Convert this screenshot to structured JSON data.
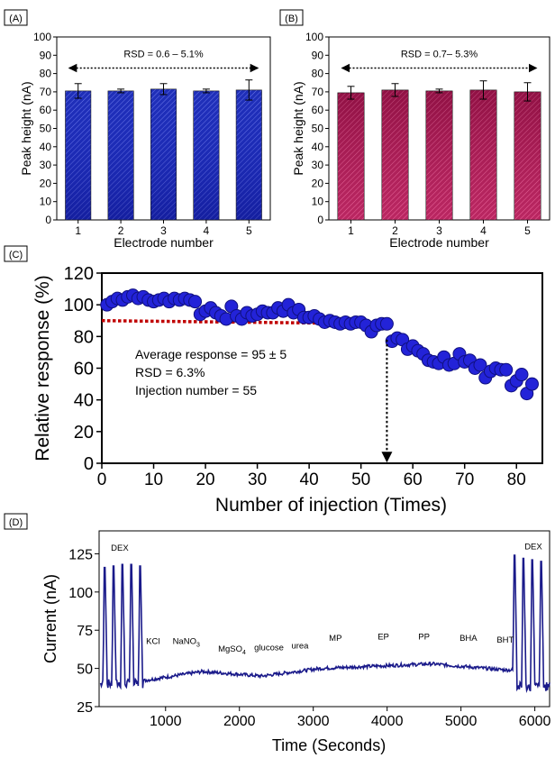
{
  "colors": {
    "blue": "#1f2fb8",
    "crimson": "#a3164f",
    "dot": "#2323d8",
    "dot_edge": "#101080",
    "trace": "#1a1a8a",
    "redline": "#c00000"
  },
  "chart_data": [
    {
      "panel": "(A)",
      "type": "bar",
      "ylabel": "Peak height (nA)",
      "xlabel": "Electrode number",
      "categories": [
        "1",
        "2",
        "3",
        "4",
        "5"
      ],
      "values": [
        70.5,
        70.5,
        71.5,
        70.5,
        71
      ],
      "errors": [
        4.0,
        1.0,
        3.0,
        1.0,
        5.5
      ],
      "ylim": [
        0,
        100
      ],
      "yticks": [
        0,
        10,
        20,
        30,
        40,
        50,
        60,
        70,
        80,
        90,
        100
      ],
      "annotation": "RSD = 0.6 – 5.1%"
    },
    {
      "panel": "(B)",
      "type": "bar",
      "ylabel": "Peak height (nA)",
      "xlabel": "Electrode number",
      "categories": [
        "1",
        "2",
        "3",
        "4",
        "5"
      ],
      "values": [
        69.5,
        71,
        70.5,
        71,
        70
      ],
      "errors": [
        3.5,
        3.5,
        1.0,
        5.0,
        5.0
      ],
      "ylim": [
        0,
        100
      ],
      "yticks": [
        0,
        10,
        20,
        30,
        40,
        50,
        60,
        70,
        80,
        90,
        100
      ],
      "annotation": "RSD = 0.7– 5.3%"
    },
    {
      "panel": "(C)",
      "type": "scatter",
      "ylabel": "Relative response (%)",
      "xlabel": "Number of injection (Times)",
      "xlim": [
        0,
        85
      ],
      "ylim": [
        0,
        120
      ],
      "xticks": [
        0,
        10,
        20,
        30,
        40,
        50,
        60,
        70,
        80
      ],
      "yticks": [
        0,
        20,
        40,
        60,
        80,
        100,
        120
      ],
      "x": [
        1,
        2,
        3,
        4,
        5,
        6,
        7,
        8,
        9,
        10,
        11,
        12,
        13,
        14,
        15,
        16,
        17,
        18,
        19,
        20,
        21,
        22,
        23,
        24,
        25,
        26,
        27,
        28,
        29,
        30,
        31,
        32,
        33,
        34,
        35,
        36,
        37,
        38,
        39,
        40,
        41,
        42,
        43,
        44,
        45,
        46,
        47,
        48,
        49,
        50,
        51,
        52,
        53,
        54,
        55,
        56,
        57,
        58,
        59,
        60,
        61,
        62,
        63,
        64,
        65,
        66,
        67,
        68,
        69,
        70,
        71,
        72,
        73,
        74,
        75,
        76,
        77,
        78,
        79,
        80,
        81,
        82,
        83
      ],
      "y": [
        100,
        102,
        104,
        103,
        105,
        106,
        104,
        105,
        103,
        102,
        103,
        104,
        102,
        104,
        103,
        104,
        103,
        102,
        94,
        96,
        98,
        95,
        93,
        91,
        99,
        93,
        91,
        95,
        93,
        94,
        96,
        95,
        95,
        98,
        96,
        100,
        95,
        97,
        92,
        92,
        93,
        91,
        89,
        90,
        89,
        88,
        89,
        88,
        89,
        89,
        87,
        83,
        87,
        88,
        88,
        77,
        79,
        78,
        72,
        74,
        71,
        69,
        65,
        64,
        63,
        67,
        62,
        63,
        69,
        64,
        65,
        60,
        62,
        54,
        58,
        60,
        59,
        59,
        49,
        52,
        56,
        44,
        50
      ],
      "reference_line": {
        "y_start": 90,
        "y_end": 88,
        "x_end": 55
      },
      "arrow_x": 55,
      "annotation_lines": [
        "Average response = 95 ± 5",
        "RSD = 6.3%",
        "Injection number = 55"
      ]
    },
    {
      "panel": "(D)",
      "type": "line",
      "ylabel": "Current (nA)",
      "xlabel": "Time (Seconds)",
      "xlim": [
        100,
        6200
      ],
      "ylim": [
        25,
        140
      ],
      "xticks": [
        1000,
        2000,
        3000,
        4000,
        5000,
        6000
      ],
      "yticks": [
        25,
        50,
        75,
        100,
        125
      ],
      "labels": [
        {
          "text": "DEX",
          "x": 380,
          "y": 127
        },
        {
          "text": "KCl",
          "x": 830,
          "y": 66
        },
        {
          "text": "NaNO",
          "sub": "3",
          "x": 1280,
          "y": 66
        },
        {
          "text": "MgSO",
          "sub": "4",
          "x": 1900,
          "y": 61
        },
        {
          "text": "glucose",
          "x": 2400,
          "y": 62
        },
        {
          "text": "urea",
          "x": 2820,
          "y": 63
        },
        {
          "text": "MP",
          "x": 3300,
          "y": 68
        },
        {
          "text": "EP",
          "x": 3950,
          "y": 69
        },
        {
          "text": "PP",
          "x": 4500,
          "y": 69
        },
        {
          "text": "BHA",
          "x": 5100,
          "y": 68
        },
        {
          "text": "BHT",
          "x": 5600,
          "y": 67
        },
        {
          "text": "DEX",
          "x": 5980,
          "y": 128
        }
      ],
      "dex_peaks_left": [
        {
          "x": 170,
          "y": 116
        },
        {
          "x": 290,
          "y": 117
        },
        {
          "x": 410,
          "y": 118
        },
        {
          "x": 530,
          "y": 118
        },
        {
          "x": 650,
          "y": 117
        }
      ],
      "dex_peaks_right": [
        {
          "x": 5720,
          "y": 124
        },
        {
          "x": 5840,
          "y": 122
        },
        {
          "x": 5960,
          "y": 121
        },
        {
          "x": 6080,
          "y": 120
        }
      ]
    }
  ]
}
